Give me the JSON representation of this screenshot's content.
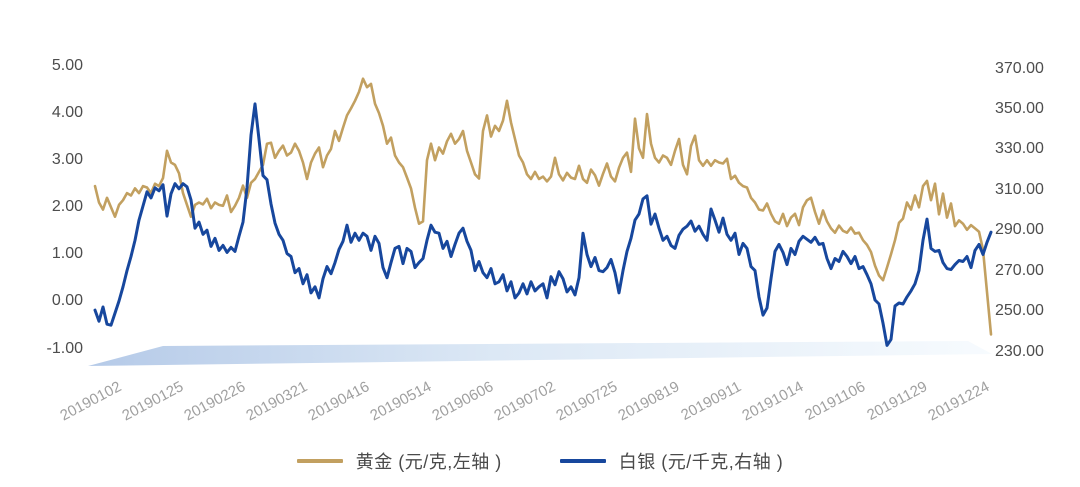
{
  "chart_data": {
    "type": "line",
    "title": "",
    "grid": false,
    "legend_position": "bottom",
    "x_tick_labels": [
      "20190102",
      "20190125",
      "20190226",
      "20190321",
      "20190416",
      "20190514",
      "20190606",
      "20190702",
      "20190725",
      "20190819",
      "20190911",
      "20191014",
      "20191106",
      "20191129",
      "20191224"
    ],
    "left_axis": {
      "ticks": [
        "5.00",
        "4.00",
        "3.00",
        "2.00",
        "1.00",
        "0.00",
        "-1.00"
      ],
      "min": -1,
      "max": 5
    },
    "right_axis": {
      "ticks": [
        "370.00",
        "350.00",
        "330.00",
        "310.00",
        "290.00",
        "270.00",
        "250.00",
        "230.00"
      ],
      "min": 230,
      "max": 370
    },
    "series": [
      {
        "id": "gold",
        "name": "黄金 (元/克,左轴 )",
        "axis": "left",
        "color": "#C2A060",
        "values": [
          2.45,
          2.1,
          1.95,
          2.2,
          2.0,
          1.8,
          2.05,
          2.15,
          2.3,
          2.25,
          2.4,
          2.3,
          2.45,
          2.42,
          2.3,
          2.5,
          2.45,
          2.62,
          3.2,
          2.95,
          2.9,
          2.72,
          2.3,
          2.05,
          1.8,
          2.05,
          2.1,
          2.06,
          2.18,
          1.98,
          2.1,
          2.05,
          2.03,
          2.25,
          1.9,
          2.03,
          2.2,
          2.46,
          2.2,
          2.52,
          2.6,
          2.75,
          2.9,
          3.35,
          3.37,
          3.05,
          3.2,
          3.31,
          3.1,
          3.16,
          3.35,
          3.2,
          2.95,
          2.6,
          2.95,
          3.14,
          3.27,
          2.85,
          3.1,
          3.24,
          3.62,
          3.41,
          3.69,
          3.95,
          4.1,
          4.26,
          4.45,
          4.73,
          4.55,
          4.62,
          4.2,
          4.0,
          3.73,
          3.35,
          3.48,
          3.1,
          2.95,
          2.85,
          2.63,
          2.4,
          1.99,
          1.65,
          1.7,
          3.0,
          3.35,
          3.0,
          3.27,
          3.14,
          3.4,
          3.56,
          3.35,
          3.45,
          3.62,
          3.2,
          2.95,
          2.7,
          2.61,
          3.62,
          3.95,
          3.5,
          3.73,
          3.62,
          3.84,
          4.26,
          3.8,
          3.45,
          3.1,
          2.95,
          2.7,
          2.6,
          2.75,
          2.6,
          2.65,
          2.55,
          2.65,
          3.05,
          2.7,
          2.57,
          2.73,
          2.63,
          2.6,
          2.88,
          2.6,
          2.52,
          2.8,
          2.68,
          2.46,
          2.71,
          2.93,
          2.65,
          2.55,
          2.84,
          3.05,
          3.16,
          2.75,
          3.88,
          3.25,
          3.05,
          3.98,
          3.35,
          3.05,
          2.95,
          3.1,
          3.05,
          2.9,
          3.2,
          3.45,
          2.9,
          2.7,
          3.3,
          3.52,
          3.0,
          2.88,
          3.0,
          2.88,
          3.0,
          2.95,
          2.93,
          3.03,
          2.6,
          2.67,
          2.52,
          2.45,
          2.42,
          2.2,
          2.1,
          1.95,
          1.93,
          2.08,
          1.86,
          1.7,
          1.65,
          1.86,
          1.6,
          1.78,
          1.86,
          1.62,
          2.0,
          2.15,
          2.2,
          1.9,
          1.65,
          1.93,
          1.7,
          1.55,
          1.46,
          1.61,
          1.5,
          1.46,
          1.57,
          1.44,
          1.46,
          1.3,
          1.2,
          1.05,
          0.76,
          0.55,
          0.45,
          0.72,
          1.0,
          1.3,
          1.67,
          1.76,
          2.1,
          1.95,
          2.25,
          2.0,
          2.45,
          2.56,
          2.15,
          2.5,
          1.85,
          2.29,
          1.78,
          2.08,
          1.6,
          1.72,
          1.65,
          1.52,
          1.62,
          1.55,
          1.48,
          1.1,
          0.2,
          -0.7
        ]
      },
      {
        "id": "silver",
        "name": "白银 (元/千克,右轴 )",
        "axis": "right",
        "color": "#17479D",
        "values": [
          250.5,
          245.0,
          252.0,
          243.5,
          243.0,
          249.0,
          255.0,
          262.0,
          270.0,
          277.0,
          285.0,
          295.0,
          302.0,
          309.0,
          306.0,
          311.0,
          309.5,
          312.5,
          297.0,
          308.0,
          313.0,
          310.5,
          313.0,
          311.5,
          305.0,
          291.0,
          294.0,
          288.0,
          290.0,
          282.0,
          286.0,
          280.0,
          282.5,
          279.0,
          281.5,
          279.5,
          287.0,
          294.0,
          311.0,
          337.0,
          352.5,
          335.0,
          317.0,
          315.0,
          303.0,
          293.5,
          288.0,
          285.0,
          278.5,
          277.0,
          269.0,
          271.0,
          263.5,
          268.0,
          259.0,
          262.0,
          256.5,
          266.0,
          272.0,
          268.5,
          274.0,
          280.5,
          284.5,
          292.5,
          284.0,
          288.5,
          285.0,
          288.5,
          287.0,
          280.0,
          287.0,
          283.5,
          271.5,
          266.5,
          274.0,
          281.0,
          282.0,
          273.5,
          281.0,
          279.5,
          271.5,
          274.0,
          276.0,
          285.0,
          292.5,
          289.0,
          288.5,
          281.0,
          284.5,
          277.0,
          283.0,
          288.5,
          291.0,
          284.5,
          280.0,
          270.0,
          274.5,
          269.0,
          266.5,
          271.0,
          263.5,
          264.5,
          268.0,
          260.0,
          264.5,
          256.5,
          259.0,
          263.5,
          258.5,
          264.5,
          260.0,
          262.0,
          263.5,
          256.5,
          267.0,
          263.0,
          269.5,
          266.0,
          259.5,
          262.0,
          258.0,
          266.5,
          288.5,
          278.0,
          272.0,
          276.5,
          270.0,
          269.5,
          271.5,
          275.5,
          269.0,
          259.0,
          270.0,
          279.5,
          286.0,
          295.0,
          298.0,
          305.5,
          307.0,
          293.0,
          298.0,
          291.0,
          285.0,
          287.0,
          282.5,
          281.0,
          287.5,
          290.5,
          292.0,
          294.5,
          289.5,
          292.0,
          288.0,
          285.0,
          300.5,
          295.0,
          289.0,
          296.0,
          288.0,
          285.0,
          288.5,
          278.0,
          283.5,
          281.0,
          272.0,
          270.0,
          257.0,
          248.0,
          251.5,
          266.0,
          279.5,
          283.0,
          279.0,
          273.0,
          281.0,
          278.0,
          284.5,
          287.0,
          285.5,
          284.0,
          286.5,
          283.0,
          283.5,
          276.0,
          271.0,
          276.0,
          274.5,
          279.5,
          277.0,
          273.5,
          277.0,
          271.0,
          272.0,
          268.0,
          263.5,
          255.5,
          253.5,
          244.0,
          233.0,
          236.0,
          252.5,
          254.0,
          253.5,
          257.0,
          260.0,
          263.5,
          270.0,
          285.0,
          295.5,
          281.0,
          279.5,
          280.0,
          274.0,
          271.0,
          270.5,
          273.0,
          275.0,
          274.5,
          277.0,
          271.5,
          280.0,
          283.0,
          278.0,
          284.0,
          289.0
        ]
      }
    ]
  },
  "legend": {
    "items": [
      {
        "label": "黄金 (元/克,左轴 )",
        "color": "#C2A060"
      },
      {
        "label": "白银 (元/千克,右轴 )",
        "color": "#17479D"
      }
    ]
  },
  "colors": {
    "gold_line": "#C2A060",
    "silver_line": "#17479D",
    "floor_left": "#b5cae8",
    "floor_right": "#f7fbfe",
    "y_axis_text": "#4d4d4d",
    "x_axis_text": "#a0a0a0",
    "legend_text": "#4a4a4a"
  }
}
